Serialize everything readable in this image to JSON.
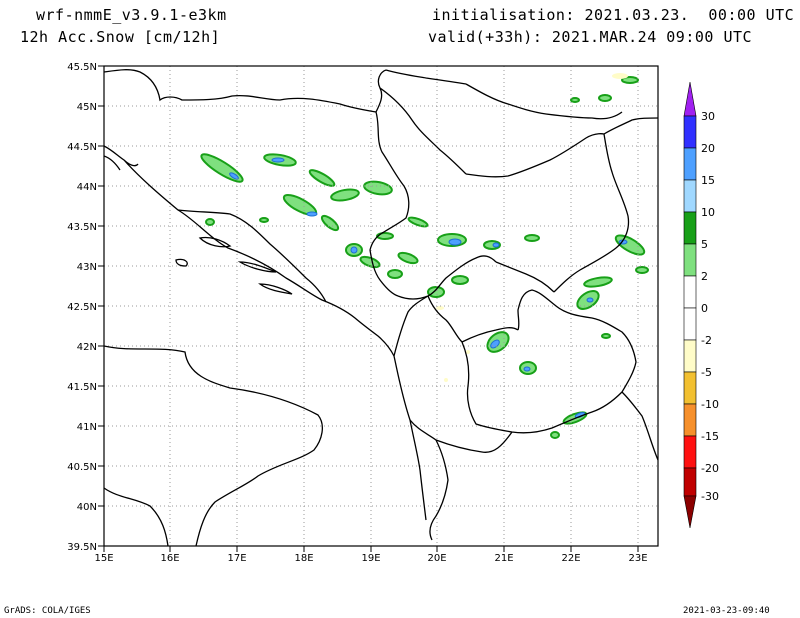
{
  "header": {
    "model": "wrf-nmmE_v3.9.1-e3km",
    "field": "12h Acc.Snow [cm/12h]",
    "init": "initialisation: 2021.03.23.  00:00 UTC",
    "valid": "valid(+33h): 2021.MAR.24 09:00 UTC"
  },
  "footer": {
    "credit": "GrADS: COLA/IGES",
    "timestamp": "2021-03-23-09:40"
  },
  "map": {
    "lat_labels": [
      "45.5N",
      "45N",
      "44.5N",
      "44N",
      "43.5N",
      "43N",
      "42.5N",
      "42N",
      "41.5N",
      "41N",
      "40.5N",
      "40N",
      "39.5N"
    ],
    "lon_labels": [
      "15E",
      "16E",
      "17E",
      "18E",
      "19E",
      "20E",
      "21E",
      "22E",
      "23E"
    ]
  },
  "legend": {
    "levels": [
      "30",
      "20",
      "15",
      "10",
      "5",
      "2",
      "0",
      "-2",
      "-5",
      "-10",
      "-15",
      "-20",
      "-30"
    ],
    "colors": {
      "top_arrow": "#a020f0",
      "c20_30": "#3030ff",
      "c15_20": "#4ea0ff",
      "c10_15": "#a0d8ff",
      "c5_10": "#18a018",
      "c2_5": "#7fe07f",
      "c0_2": "#ffffff",
      "cm2_0": "#ffffff",
      "cm5_m2": "#fffcc8",
      "cm10_m5": "#f2c030",
      "cm15_m10": "#f6902c",
      "cm20_m15": "#ff1010",
      "cm30_m20": "#c00000",
      "bottom_arrow": "#8b0000"
    }
  }
}
